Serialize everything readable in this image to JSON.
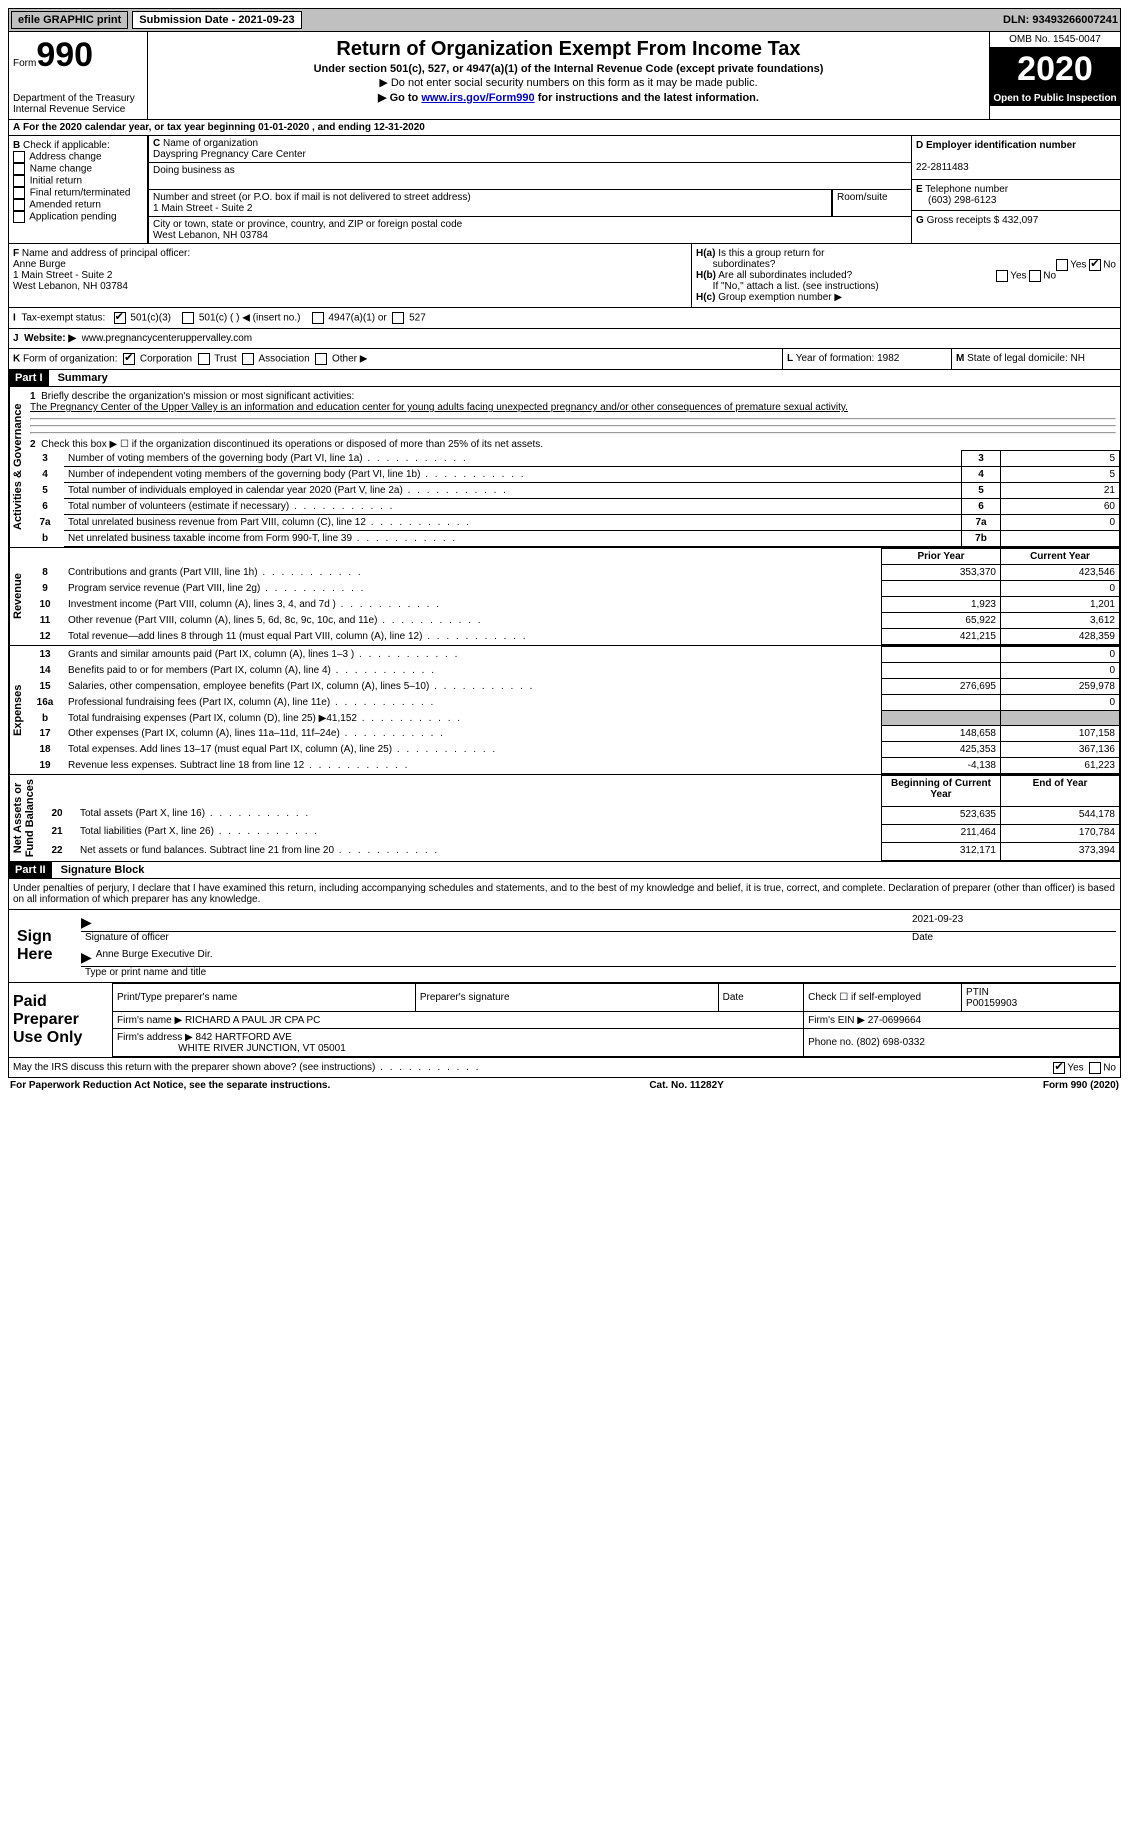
{
  "topbar": {
    "efile": "efile GRAPHIC print",
    "submission_label": "Submission Date - 2021-09-23",
    "dln": "DLN: 93493266007241"
  },
  "header": {
    "form_prefix": "Form",
    "form_number": "990",
    "dept": "Department of the Treasury\nInternal Revenue Service",
    "title": "Return of Organization Exempt From Income Tax",
    "sub1": "Under section 501(c), 527, or 4947(a)(1) of the Internal Revenue Code (except private foundations)",
    "sub2": "▶ Do not enter social security numbers on this form as it may be made public.",
    "sub3a": "▶ Go to ",
    "sub3b": "www.irs.gov/Form990",
    "sub3c": " for instructions and the latest information.",
    "omb": "OMB No. 1545-0047",
    "year": "2020",
    "inspection": "Open to Public Inspection"
  },
  "A": {
    "text": "For the 2020 calendar year, or tax year beginning 01-01-2020   , and ending 12-31-2020"
  },
  "B": {
    "label": "Check if applicable:",
    "items": [
      "Address change",
      "Name change",
      "Initial return",
      "Final return/terminated",
      "Amended return",
      "Application pending"
    ]
  },
  "C": {
    "name_label": "Name of organization",
    "name": "Dayspring Pregnancy Care Center",
    "dba_label": "Doing business as",
    "dba": "",
    "street_label": "Number and street (or P.O. box if mail is not delivered to street address)",
    "room_label": "Room/suite",
    "street": "1 Main Street - Suite 2",
    "city_label": "City or town, state or province, country, and ZIP or foreign postal code",
    "city": "West Lebanon, NH  03784"
  },
  "D": {
    "label": "Employer identification number",
    "value": "22-2811483"
  },
  "E": {
    "label": "Telephone number",
    "value": "(603) 298-6123"
  },
  "G": {
    "label": "Gross receipts $",
    "value": "432,097"
  },
  "F": {
    "label": "Name and address of principal officer:",
    "name": "Anne Burge",
    "addr1": "1 Main Street - Suite 2",
    "addr2": "West Lebanon, NH  03784"
  },
  "H": {
    "a": "Is this a group return for",
    "a2": "subordinates?",
    "b": "Are all subordinates included?",
    "note": "If \"No,\" attach a list. (see instructions)",
    "c": "Group exemption number ▶"
  },
  "I": {
    "label": "Tax-exempt status:",
    "opts": [
      "501(c)(3)",
      "501(c) (  ) ◀ (insert no.)",
      "4947(a)(1) or",
      "527"
    ]
  },
  "J": {
    "label": "Website: ▶",
    "value": "www.pregnancycenteruppervalley.com"
  },
  "K": {
    "label": "Form of organization:",
    "opts": [
      "Corporation",
      "Trust",
      "Association",
      "Other ▶"
    ]
  },
  "L": {
    "label": "Year of formation:",
    "value": "1982"
  },
  "M": {
    "label": "State of legal domicile:",
    "value": "NH"
  },
  "part1": {
    "header": "Part I",
    "title": "Summary",
    "q1": "Briefly describe the organization's mission or most significant activities:",
    "mission": "The Pregnancy Center of the Upper Valley is an information and education center for young adults facing unexpected pregnancy and/or other consequences of premature sexual activity.",
    "q2": "Check this box ▶ ☐  if the organization discontinued its operations or disposed of more than 25% of its net assets.",
    "rows_gov": [
      {
        "n": "3",
        "t": "Number of voting members of the governing body (Part VI, line 1a)",
        "v": "5"
      },
      {
        "n": "4",
        "t": "Number of independent voting members of the governing body (Part VI, line 1b)",
        "v": "5"
      },
      {
        "n": "5",
        "t": "Total number of individuals employed in calendar year 2020 (Part V, line 2a)",
        "v": "21"
      },
      {
        "n": "6",
        "t": "Total number of volunteers (estimate if necessary)",
        "v": "60"
      },
      {
        "n": "7a",
        "t": "Total unrelated business revenue from Part VIII, column (C), line 12",
        "v": "0"
      },
      {
        "n": "b",
        "t": "Net unrelated business taxable income from Form 990-T, line 39",
        "nk": "7b",
        "v": ""
      }
    ],
    "col_prior": "Prior Year",
    "col_current": "Current Year",
    "rows_rev": [
      {
        "n": "8",
        "t": "Contributions and grants (Part VIII, line 1h)",
        "p": "353,370",
        "c": "423,546"
      },
      {
        "n": "9",
        "t": "Program service revenue (Part VIII, line 2g)",
        "p": "",
        "c": "0"
      },
      {
        "n": "10",
        "t": "Investment income (Part VIII, column (A), lines 3, 4, and 7d )",
        "p": "1,923",
        "c": "1,201"
      },
      {
        "n": "11",
        "t": "Other revenue (Part VIII, column (A), lines 5, 6d, 8c, 9c, 10c, and 11e)",
        "p": "65,922",
        "c": "3,612"
      },
      {
        "n": "12",
        "t": "Total revenue—add lines 8 through 11 (must equal Part VIII, column (A), line 12)",
        "p": "421,215",
        "c": "428,359"
      }
    ],
    "rows_exp": [
      {
        "n": "13",
        "t": "Grants and similar amounts paid (Part IX, column (A), lines 1–3 )",
        "p": "",
        "c": "0"
      },
      {
        "n": "14",
        "t": "Benefits paid to or for members (Part IX, column (A), line 4)",
        "p": "",
        "c": "0"
      },
      {
        "n": "15",
        "t": "Salaries, other compensation, employee benefits (Part IX, column (A), lines 5–10)",
        "p": "276,695",
        "c": "259,978"
      },
      {
        "n": "16a",
        "t": "Professional fundraising fees (Part IX, column (A), line 11e)",
        "p": "",
        "c": "0"
      },
      {
        "n": "b",
        "t": "Total fundraising expenses (Part IX, column (D), line 25) ▶41,152",
        "p": "grey",
        "c": "grey"
      },
      {
        "n": "17",
        "t": "Other expenses (Part IX, column (A), lines 11a–11d, 11f–24e)",
        "p": "148,658",
        "c": "107,158"
      },
      {
        "n": "18",
        "t": "Total expenses. Add lines 13–17 (must equal Part IX, column (A), line 25)",
        "p": "425,353",
        "c": "367,136"
      },
      {
        "n": "19",
        "t": "Revenue less expenses. Subtract line 18 from line 12",
        "p": "-4,138",
        "c": "61,223"
      }
    ],
    "col_begin": "Beginning of Current Year",
    "col_end": "End of Year",
    "rows_net": [
      {
        "n": "20",
        "t": "Total assets (Part X, line 16)",
        "p": "523,635",
        "c": "544,178"
      },
      {
        "n": "21",
        "t": "Total liabilities (Part X, line 26)",
        "p": "211,464",
        "c": "170,784"
      },
      {
        "n": "22",
        "t": "Net assets or fund balances. Subtract line 21 from line 20",
        "p": "312,171",
        "c": "373,394"
      }
    ],
    "side_labels": {
      "gov": "Activities & Governance",
      "rev": "Revenue",
      "exp": "Expenses",
      "net": "Net Assets or\nFund Balances"
    }
  },
  "part2": {
    "header": "Part II",
    "title": "Signature Block",
    "penalty": "Under penalties of perjury, I declare that I have examined this return, including accompanying schedules and statements, and to the best of my knowledge and belief, it is true, correct, and complete. Declaration of preparer (other than officer) is based on all information of which preparer has any knowledge.",
    "sign_here": "Sign Here",
    "sig_officer": "Signature of officer",
    "date": "Date",
    "date_val": "2021-09-23",
    "officer_name": "Anne Burge  Executive Dir.",
    "type_name": "Type or print name and title",
    "paid": "Paid Preparer Use Only",
    "pt_name_label": "Print/Type preparer's name",
    "pt_sig_label": "Preparer's signature",
    "pt_date": "Date",
    "check_self": "Check ☐ if self-employed",
    "ptin_label": "PTIN",
    "ptin": "P00159903",
    "firm_name_label": "Firm's name   ▶",
    "firm_name": "RICHARD A PAUL JR CPA PC",
    "firm_ein_label": "Firm's EIN ▶",
    "firm_ein": "27-0699664",
    "firm_addr_label": "Firm's address ▶",
    "firm_addr1": "842 HARTFORD AVE",
    "firm_addr2": "WHITE RIVER JUNCTION, VT  05001",
    "phone_label": "Phone no.",
    "phone": "(802) 698-0332",
    "discuss": "May the IRS discuss this return with the preparer shown above? (see instructions)"
  },
  "footer": {
    "left": "For Paperwork Reduction Act Notice, see the separate instructions.",
    "mid": "Cat. No. 11282Y",
    "right": "Form 990 (2020)"
  },
  "yn": {
    "yes": "Yes",
    "no": "No"
  }
}
